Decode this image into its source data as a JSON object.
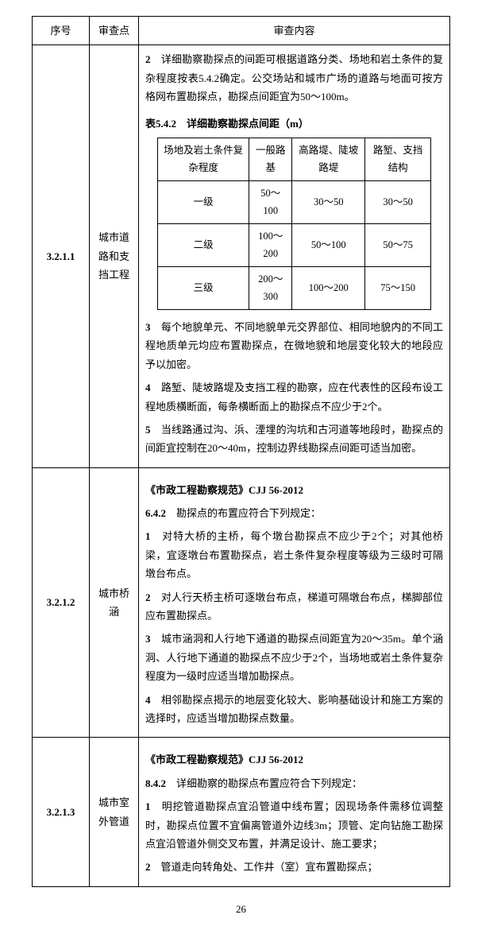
{
  "header": {
    "col1": "序号",
    "col2": "审查点",
    "col3": "审查内容"
  },
  "rows": [
    {
      "index": "3.2.1.1",
      "point": "城市道路和支挡工程",
      "content": {
        "p1_num": "2",
        "p1": "　详细勘察勘探点的间距可根据道路分类、场地和岩土条件的复杂程度按表5.4.2确定。公交场站和城市广场的道路与地面可按方格网布置勘探点，勘探点间距宜为50～100m。",
        "table_title": "表5.4.2　详细勘察勘探点间距（m）",
        "tbl": {
          "h1": "场地及岩土条件复杂程度",
          "h2": "一般路基",
          "h3": "高路堤、陡坡路堤",
          "h4": "路堑、支挡结构",
          "r1c1": "一级",
          "r1c2": "50～100",
          "r1c3": "30～50",
          "r1c4": "30～50",
          "r2c1": "二级",
          "r2c2": "100～200",
          "r2c3": "50～100",
          "r2c4": "50～75",
          "r3c1": "三级",
          "r3c2": "200～300",
          "r3c3": "100～200",
          "r3c4": "75～150"
        },
        "p3_num": "3",
        "p3": "　每个地貌单元、不同地貌单元交界部位、相同地貌内的不同工程地质单元均应布置勘探点，在微地貌和地层变化较大的地段应予以加密。",
        "p4_num": "4",
        "p4": "　路堑、陡坡路堤及支挡工程的勘察，应在代表性的区段布设工程地质横断面，每条横断面上的勘探点不应少于2个。",
        "p5_num": "5",
        "p5": "　当线路通过沟、浜、湮埋的沟坑和古河道等地段时，勘探点的间距宜控制在20～40m，控制边界线勘探点间距可适当加密。"
      }
    },
    {
      "index": "3.2.1.2",
      "point": "城市桥涵",
      "content": {
        "reg": "《市政工程勘察规范》CJJ 56-2012",
        "sec_num": "6.4.2",
        "sec": "　勘探点的布置应符合下列规定：",
        "p1_num": "1",
        "p1": "　对特大桥的主桥，每个墩台勘探点不应少于2个；对其他桥梁，宜逐墩台布置勘探点，岩土条件复杂程度等级为三级时可隔墩台布点。",
        "p2_num": "2",
        "p2": "　对人行天桥主桥可逐墩台布点，梯道可隔墩台布点，梯脚部位应布置勘探点。",
        "p3_num": "3",
        "p3": "　城市涵洞和人行地下通道的勘探点间距宜为20～35m。单个涵洞、人行地下通道的勘探点不应少于2个，当场地或岩土条件复杂程度为一级时应适当增加勘探点。",
        "p4_num": "4",
        "p4": "　相邻勘探点揭示的地层变化较大、影响基础设计和施工方案的选择时，应适当增加勘探点数量。"
      }
    },
    {
      "index": "3.2.1.3",
      "point": "城市室外管道",
      "content": {
        "reg": "《市政工程勘察规范》CJJ 56-2012",
        "sec_num": "8.4.2",
        "sec": "　详细勘察的勘探点布置应符合下列规定：",
        "p1_num": "1",
        "p1": "　明挖管道勘探点宜沿管道中线布置；因现场条件需移位调整时，勘探点位置不宜偏离管道外边线3m；顶管、定向钻施工勘探点宜沿管道外侧交叉布置，并满足设计、施工要求；",
        "p2_num": "2",
        "p2": "　管道走向转角处、工作井（室）宜布置勘探点；"
      }
    }
  ],
  "page_num": "26"
}
